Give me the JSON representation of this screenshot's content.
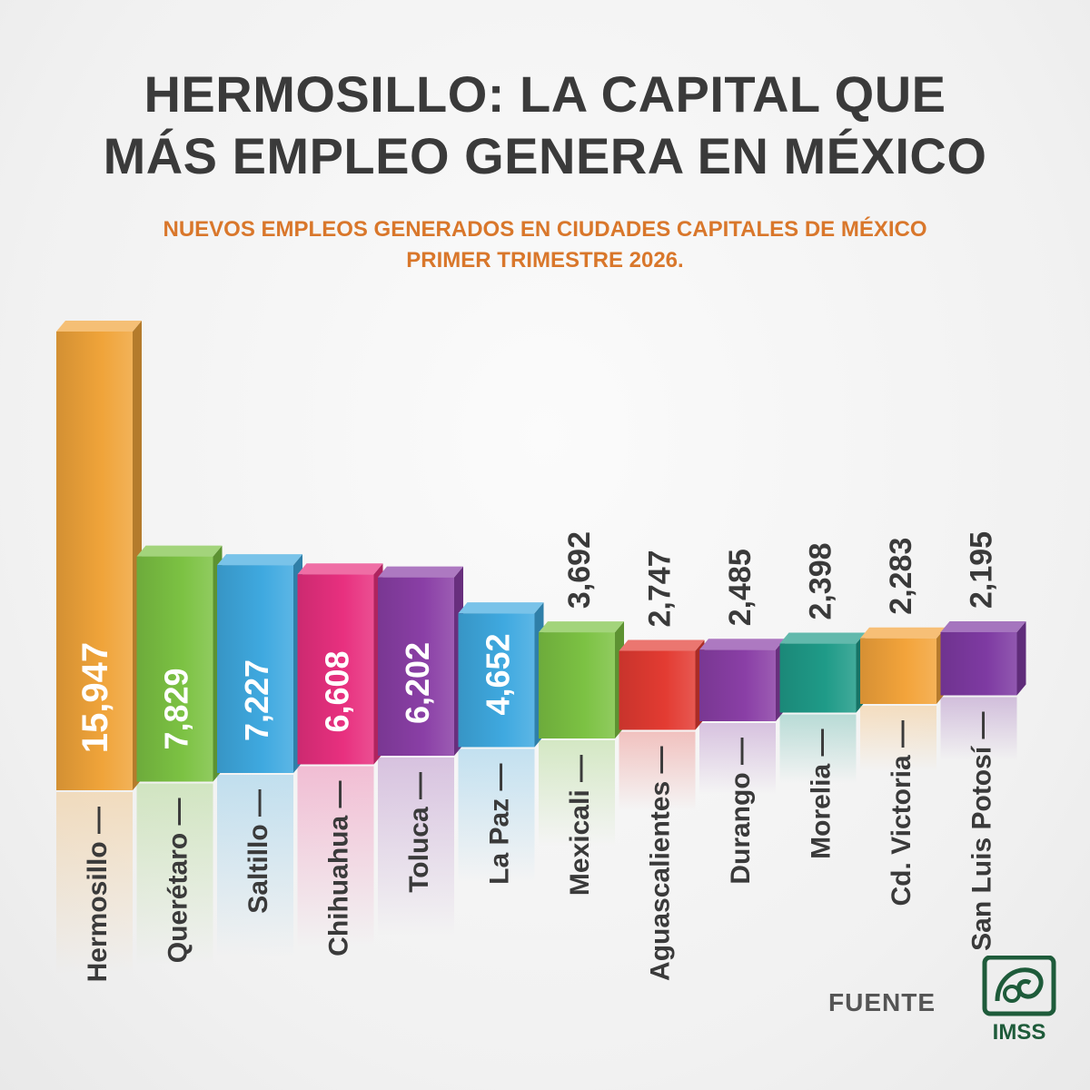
{
  "header": {
    "title_line1": "HERMOSILLO: LA CAPITAL QUE",
    "title_line2": "MÁS EMPLEO GENERA EN MÉXICO",
    "subtitle_line1": "NUEVOS EMPLEOS GENERADOS EN CIUDADES CAPITALES DE MÉXICO",
    "subtitle_line2": "PRIMER TRIMESTRE 2026."
  },
  "footer": {
    "source_label": "FUENTE",
    "logo_text": "IMSS"
  },
  "chart_data": {
    "type": "bar",
    "style": "3d-columns",
    "orientation": "vertical",
    "value_label_orientation": "rotated",
    "categories": [
      "Hermosillo",
      "Querétaro",
      "Saltillo",
      "Chihuahua",
      "Toluca",
      "La Paz",
      "Mexicali",
      "Aguascalientes",
      "Durango",
      "Morelia",
      "Cd. Victoria",
      "San Luis Potosí"
    ],
    "values": [
      15947,
      7829,
      7227,
      6608,
      6202,
      4652,
      3692,
      2747,
      2485,
      2398,
      2283,
      2195
    ],
    "value_labels": [
      "15,947",
      "7,829",
      "7,227",
      "6,608",
      "6,202",
      "4,652",
      "3,692",
      "2,747",
      "2,485",
      "2,398",
      "2,283",
      "2,195"
    ],
    "bar_colors": [
      "#f0a43a",
      "#7cc243",
      "#3fa9e0",
      "#e8307f",
      "#8a3fa6",
      "#3fa9e0",
      "#7cc243",
      "#e33b32",
      "#8a3fa6",
      "#1f9b88",
      "#f3a43b",
      "#7e3aa2"
    ],
    "title": "",
    "xlabel": "",
    "ylabel": "",
    "grid": false,
    "legend": "none"
  },
  "colors": {
    "title": "#3a3a3a",
    "subtitle": "#d9772b",
    "imss_green": "#1e5b3a"
  }
}
